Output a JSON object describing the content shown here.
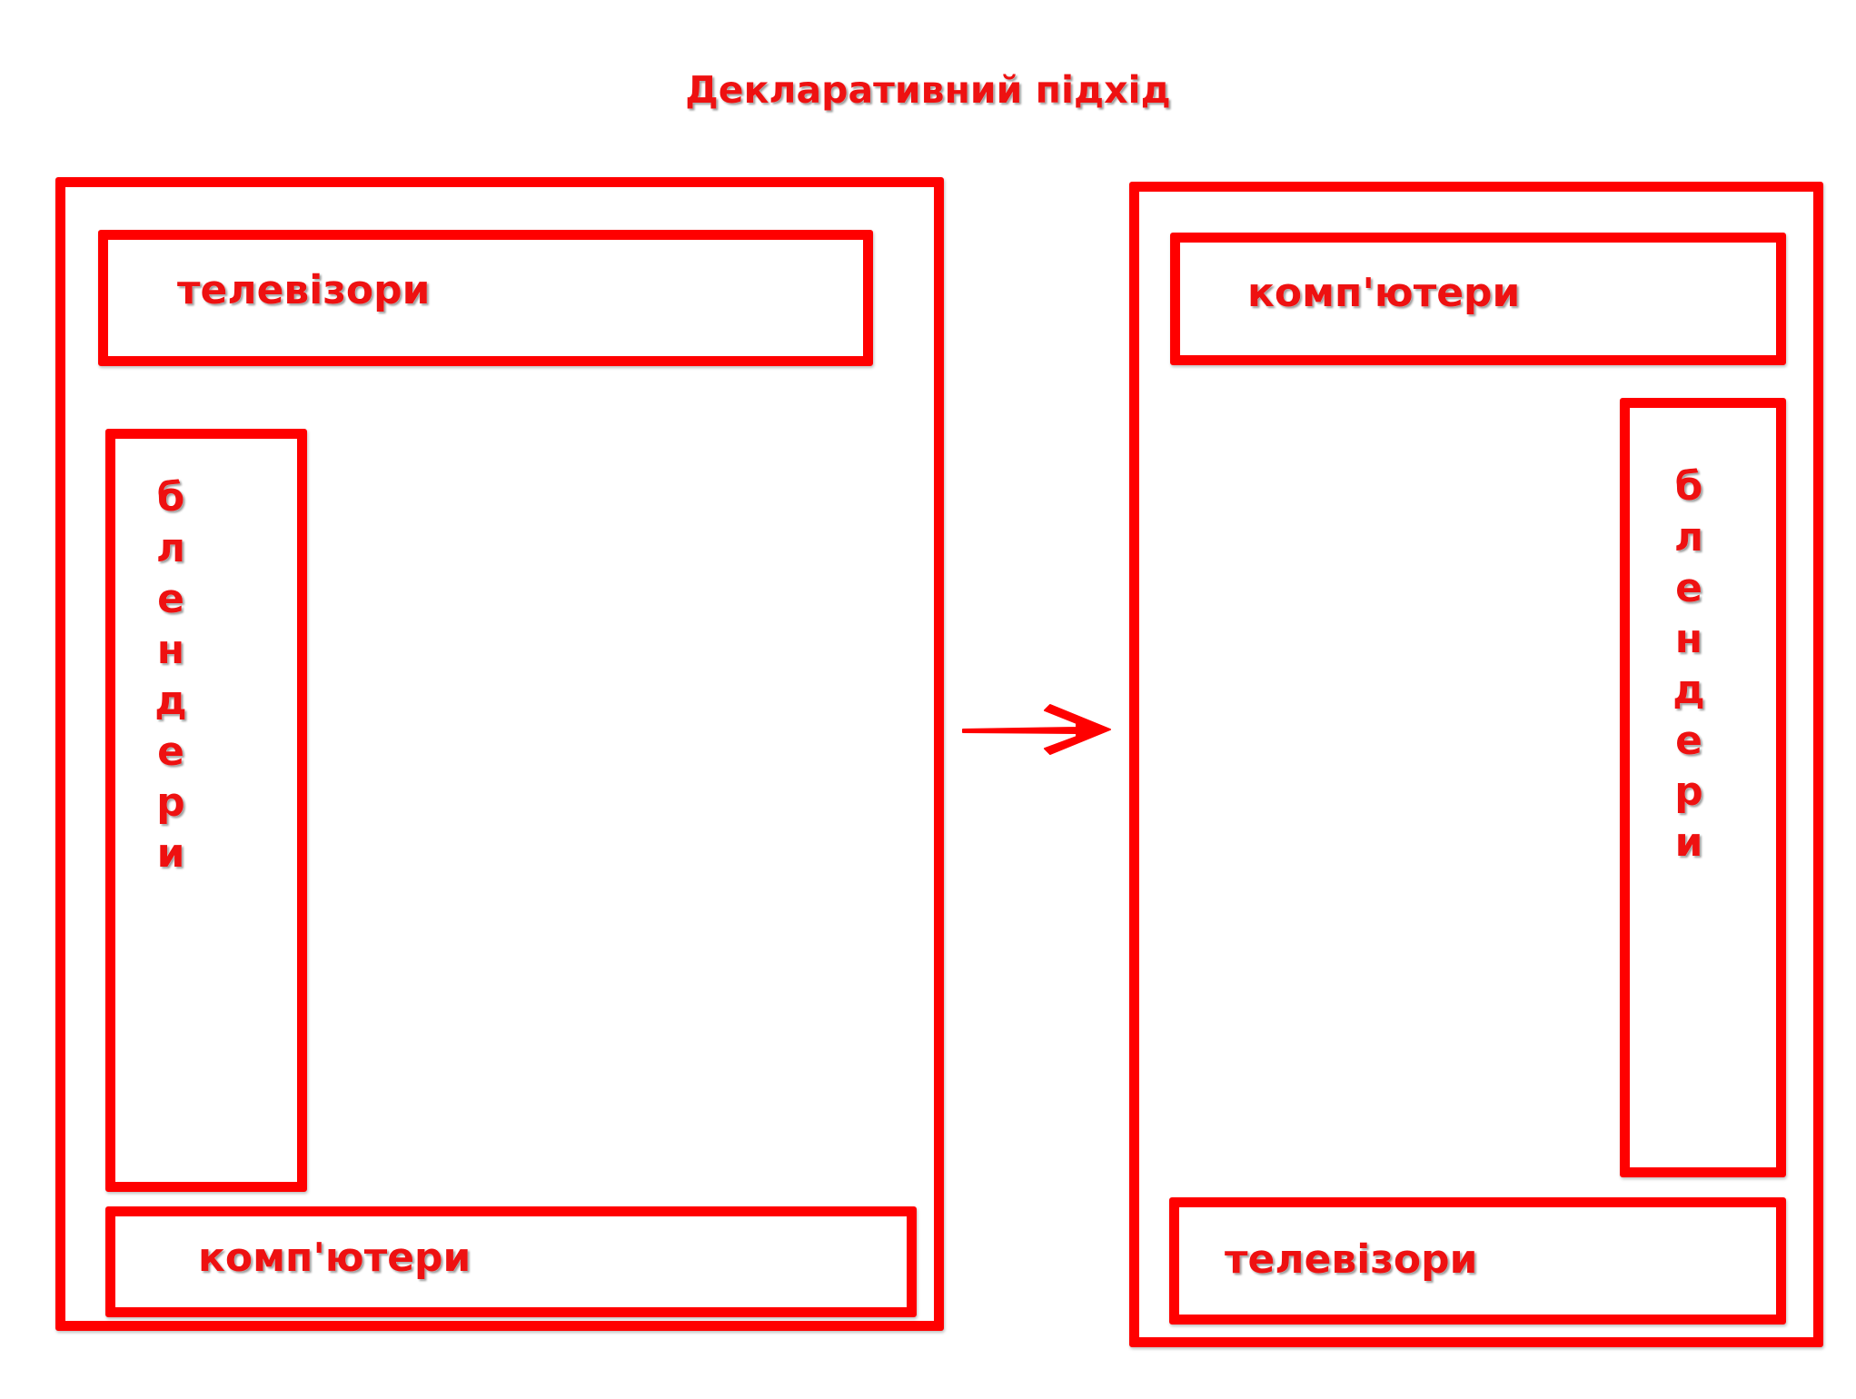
{
  "title": "Декларативний підхід",
  "left_panel": {
    "top_box_label": "телевізори",
    "side_box_label": "блендери",
    "bottom_box_label": "комп'ютери"
  },
  "right_panel": {
    "top_box_label": "комп'ютери",
    "side_box_label": "блендери",
    "bottom_box_label": "телевізори"
  },
  "colors": {
    "accent": "#ff0000",
    "text": "#ee1111"
  },
  "icons": {
    "arrow": "arrow-right-icon"
  }
}
